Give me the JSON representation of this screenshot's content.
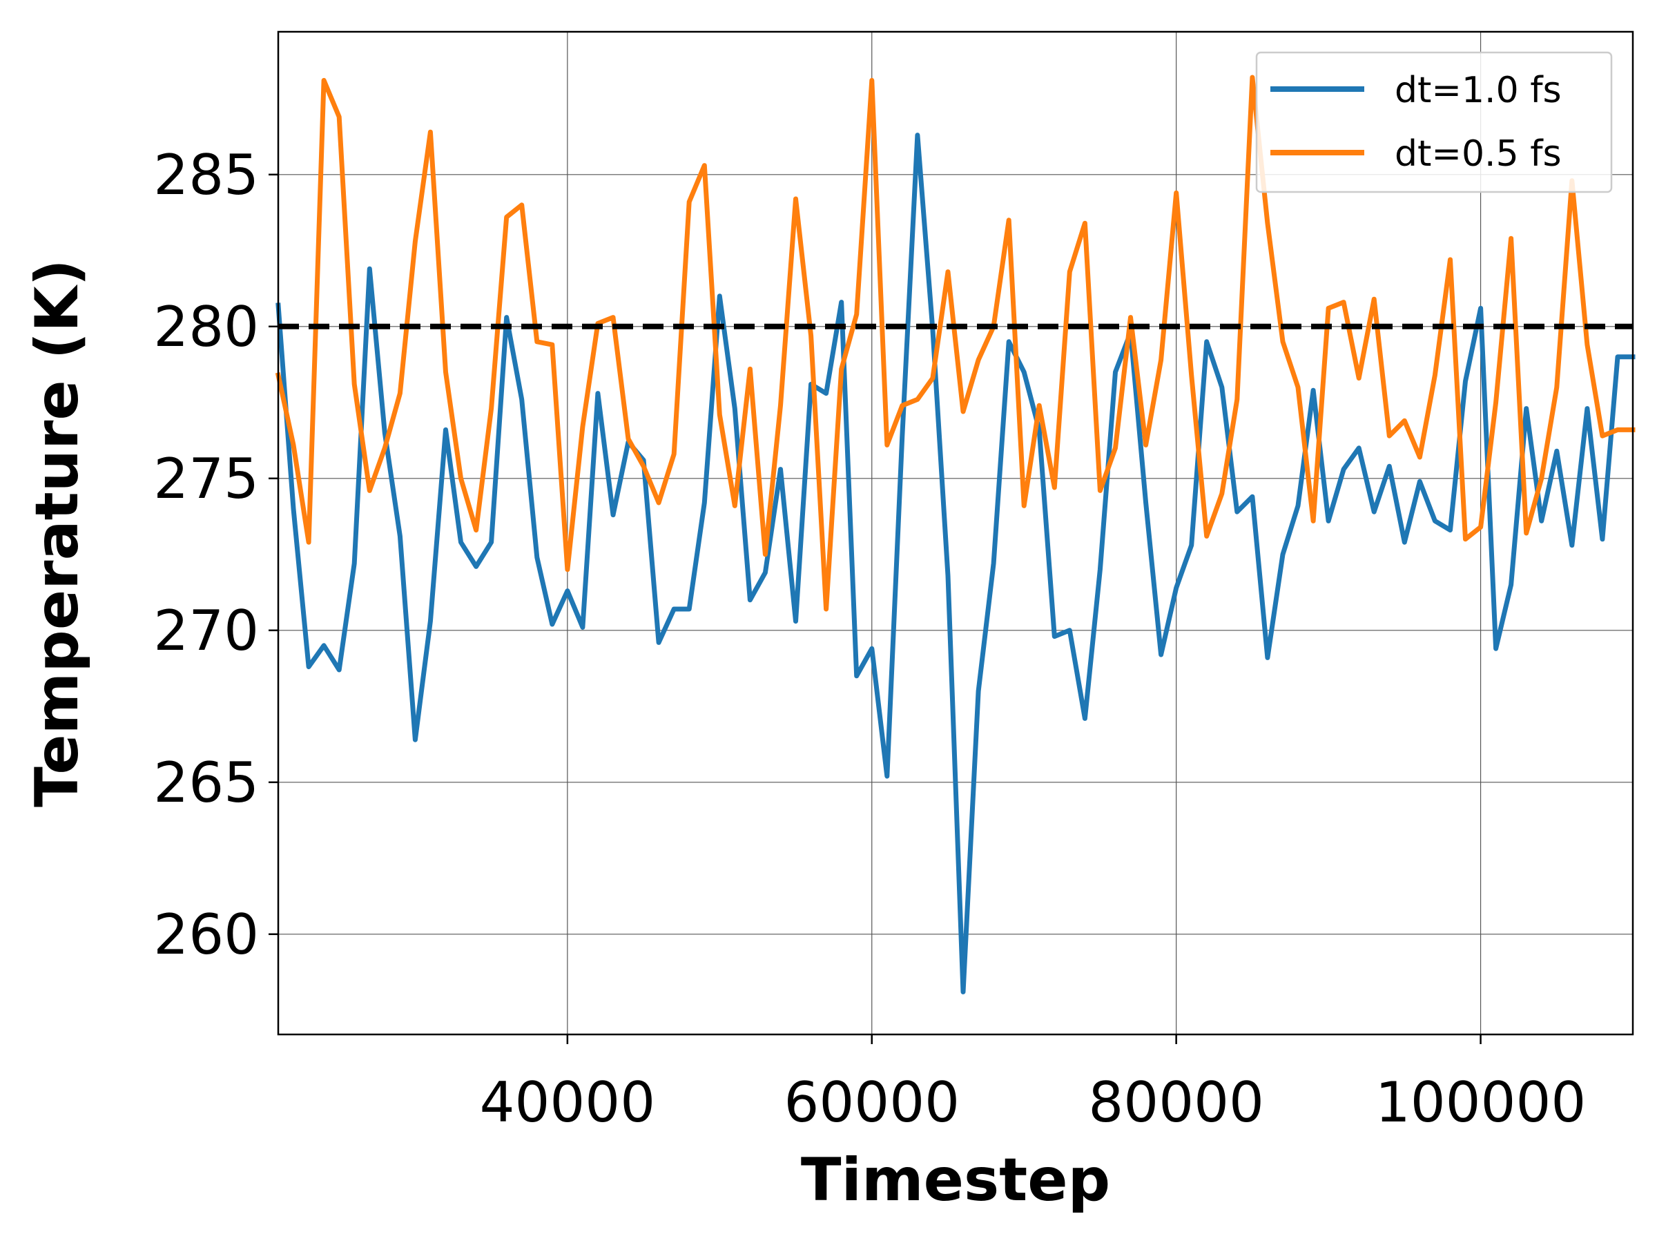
{
  "chart_data": {
    "type": "line",
    "title": "",
    "xlabel": "Timestep",
    "ylabel": "Temperature (K)",
    "xlim": [
      21000,
      110000
    ],
    "ylim": [
      256.7,
      289.7
    ],
    "xticks": [
      40000,
      60000,
      80000,
      100000
    ],
    "yticks": [
      260,
      265,
      270,
      275,
      280,
      285
    ],
    "grid": true,
    "legend_position": "top-right",
    "reference_line": {
      "y": 280,
      "style": "dashed",
      "color": "#000000"
    },
    "x": [
      21000,
      22000,
      23000,
      24000,
      25000,
      26000,
      27000,
      28000,
      29000,
      30000,
      31000,
      32000,
      33000,
      34000,
      35000,
      36000,
      37000,
      38000,
      39000,
      40000,
      41000,
      42000,
      43000,
      44000,
      45000,
      46000,
      47000,
      48000,
      49000,
      50000,
      51000,
      52000,
      53000,
      54000,
      55000,
      56000,
      57000,
      58000,
      59000,
      60000,
      61000,
      62000,
      63000,
      64000,
      65000,
      66000,
      67000,
      68000,
      69000,
      70000,
      71000,
      72000,
      73000,
      74000,
      75000,
      76000,
      77000,
      78000,
      79000,
      80000,
      81000,
      82000,
      83000,
      84000,
      85000,
      86000,
      87000,
      88000,
      89000,
      90000,
      91000,
      92000,
      93000,
      94000,
      95000,
      96000,
      97000,
      98000,
      99000,
      100000,
      101000,
      102000,
      103000,
      104000,
      105000,
      106000,
      107000,
      108000,
      109000,
      110000
    ],
    "series": [
      {
        "name": "dt=1.0 fs",
        "color": "#1f77b4",
        "values": [
          280.7,
          274.0,
          268.8,
          269.5,
          268.7,
          272.2,
          281.9,
          276.5,
          273.1,
          266.4,
          270.3,
          276.6,
          272.9,
          272.1,
          272.9,
          280.3,
          277.6,
          272.4,
          270.2,
          271.3,
          270.1,
          277.8,
          273.8,
          276.2,
          275.6,
          269.6,
          270.7,
          270.7,
          274.2,
          281.0,
          277.3,
          271.0,
          271.9,
          275.3,
          270.3,
          278.1,
          277.8,
          280.8,
          268.5,
          269.4,
          265.2,
          276.4,
          286.3,
          279.9,
          271.8,
          258.1,
          268.0,
          272.2,
          279.5,
          278.5,
          276.6,
          269.8,
          270.0,
          267.1,
          272.0,
          278.5,
          279.8,
          274.2,
          269.2,
          271.4,
          272.8,
          279.5,
          278.0,
          273.9,
          274.4,
          269.1,
          272.5,
          274.1,
          277.9,
          273.6,
          275.3,
          276.0,
          273.9,
          275.4,
          272.9,
          274.9,
          273.6,
          273.3,
          278.2,
          280.6,
          269.4,
          271.5,
          277.3,
          273.6,
          275.9,
          272.8,
          277.3,
          273.0,
          279.0,
          279.0
        ]
      },
      {
        "name": "dt=0.5 fs",
        "color": "#ff7f0e",
        "values": [
          278.4,
          276.1,
          272.9,
          288.1,
          286.9,
          278.1,
          274.6,
          276.0,
          277.8,
          282.8,
          286.4,
          278.5,
          275.0,
          273.3,
          277.3,
          283.6,
          284.0,
          279.5,
          279.4,
          272.0,
          276.7,
          280.1,
          280.3,
          276.3,
          275.4,
          274.2,
          275.8,
          284.1,
          285.3,
          277.1,
          274.1,
          278.6,
          272.5,
          277.4,
          284.2,
          279.7,
          270.7,
          278.6,
          280.4,
          288.1,
          276.1,
          277.4,
          277.6,
          278.3,
          281.8,
          277.2,
          278.9,
          280.0,
          283.5,
          274.1,
          277.4,
          274.7,
          281.8,
          283.4,
          274.6,
          276.0,
          280.3,
          276.1,
          278.9,
          284.4,
          278.4,
          273.1,
          274.5,
          277.6,
          288.2,
          283.4,
          279.5,
          278.0,
          273.6,
          280.6,
          280.8,
          278.3,
          280.9,
          276.4,
          276.9,
          275.7,
          278.4,
          282.2,
          273.0,
          273.4,
          277.5,
          282.9,
          273.2,
          275.0,
          278.0,
          284.8,
          279.4,
          276.4,
          276.6,
          276.6
        ]
      }
    ]
  }
}
